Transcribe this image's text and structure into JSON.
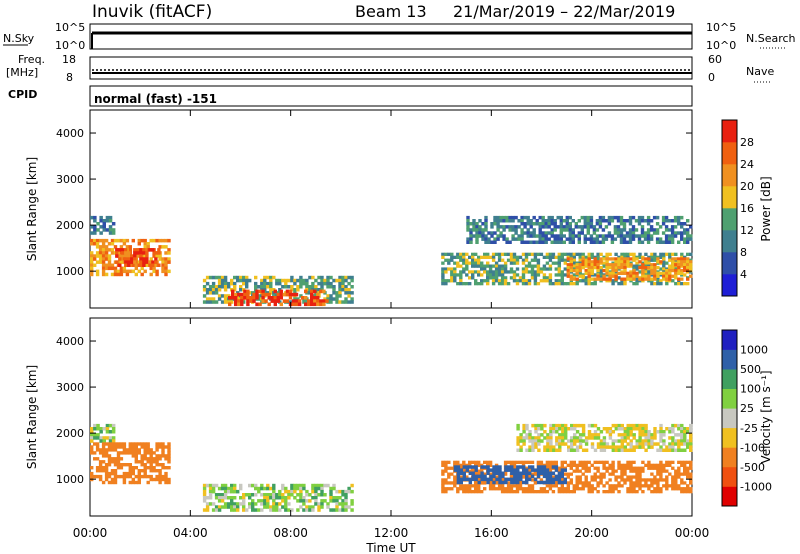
{
  "header": {
    "station": "Inuvik (fitACF)",
    "beam": "Beam 13",
    "date_range": "21/Mar/2019 – 22/Mar/2019"
  },
  "nsky_panel": {
    "left_label": "N.Sky",
    "left_top_tick": "10^5",
    "left_bottom_tick": "10^0",
    "right_top_tick": "10^5",
    "right_bottom_tick": "10^0",
    "right_label": "N.Search"
  },
  "freq_panel": {
    "left_label_1": "Freq.",
    "left_label_2": "[MHz]",
    "left_top_tick": "18",
    "left_bottom_tick": "8",
    "right_top_tick": "60",
    "right_bottom_tick": "0",
    "right_label": "Nave"
  },
  "cpid": {
    "label": "CPID",
    "value": "normal (fast) -151"
  },
  "power_panel": {
    "ylabel": "Slant Range [km]",
    "colorbar_title": "Power [dB]",
    "colorbar_ticks": [
      "28",
      "24",
      "20",
      "16",
      "12",
      "8",
      "4"
    ]
  },
  "velocity_panel": {
    "ylabel": "Slant Range [km]",
    "colorbar_title": "Velocity [m s⁻¹]",
    "colorbar_ticks": [
      "1000",
      "500",
      "100",
      "25",
      "-25",
      "-100",
      "-500",
      "-1000"
    ]
  },
  "xaxis": {
    "label": "Time UT",
    "ticks": [
      "00:00",
      "04:00",
      "08:00",
      "12:00",
      "16:00",
      "20:00",
      "00:00"
    ]
  },
  "yaxis_ticks": [
    "1000",
    "2000",
    "3000",
    "4000"
  ],
  "colors": {
    "power_scale": [
      "#1f1fd6",
      "#2f4fa8",
      "#3f7f8f",
      "#4fa070",
      "#f0c020",
      "#f09020",
      "#f06010",
      "#e82010"
    ],
    "velocity_scale": [
      "#e00000",
      "#f05010",
      "#f08020",
      "#f0c020",
      "#c8c8c0",
      "#80d040",
      "#40a060",
      "#2f60a8",
      "#2020c0"
    ]
  },
  "chart_data": [
    {
      "type": "heatmap",
      "title": "Power [dB]",
      "xlabel": "Time UT",
      "ylabel": "Slant Range [km]",
      "xlim": [
        0,
        24
      ],
      "ylim": [
        200,
        4500
      ],
      "colorbar": {
        "label": "Power [dB]",
        "range": [
          0,
          32
        ],
        "ticks": [
          4,
          8,
          12,
          16,
          20,
          24,
          28
        ]
      },
      "regions": [
        {
          "t_start": 0.0,
          "t_end": 1.0,
          "range_min": 1800,
          "range_max": 2200,
          "power": 10
        },
        {
          "t_start": 0.0,
          "t_end": 3.2,
          "range_min": 900,
          "range_max": 1700,
          "power": 22
        },
        {
          "t_start": 1.0,
          "t_end": 2.8,
          "range_min": 1100,
          "range_max": 1500,
          "power": 28
        },
        {
          "t_start": 4.5,
          "t_end": 10.5,
          "range_min": 300,
          "range_max": 900,
          "power": 14
        },
        {
          "t_start": 5.5,
          "t_end": 9.5,
          "range_min": 250,
          "range_max": 600,
          "power": 28
        },
        {
          "t_start": 14.0,
          "t_end": 24.0,
          "range_min": 700,
          "range_max": 1400,
          "power": 14
        },
        {
          "t_start": 19.0,
          "t_end": 24.0,
          "range_min": 800,
          "range_max": 1300,
          "power": 22
        },
        {
          "t_start": 15.0,
          "t_end": 24.0,
          "range_min": 1600,
          "range_max": 2200,
          "power": 10
        }
      ]
    },
    {
      "type": "heatmap",
      "title": "Velocity [m s-1]",
      "xlabel": "Time UT",
      "ylabel": "Slant Range [km]",
      "xlim": [
        0,
        24
      ],
      "ylim": [
        200,
        4500
      ],
      "colorbar": {
        "label": "Velocity [m s-1]",
        "ticks": [
          1000,
          500,
          100,
          25,
          -25,
          -100,
          -500,
          -1000
        ]
      },
      "regions": [
        {
          "t_start": 0.0,
          "t_end": 1.0,
          "range_min": 1800,
          "range_max": 2200,
          "velocity": 50
        },
        {
          "t_start": 0.0,
          "t_end": 3.2,
          "range_min": 900,
          "range_max": 1800,
          "velocity": -300
        },
        {
          "t_start": 4.5,
          "t_end": 10.5,
          "range_min": 300,
          "range_max": 900,
          "velocity": 50
        },
        {
          "t_start": 14.0,
          "t_end": 24.0,
          "range_min": 700,
          "range_max": 1400,
          "velocity": -200
        },
        {
          "t_start": 14.5,
          "t_end": 19.0,
          "range_min": 900,
          "range_max": 1300,
          "velocity": 600
        },
        {
          "t_start": 17.0,
          "t_end": 24.0,
          "range_min": 1600,
          "range_max": 2200,
          "velocity": 0
        }
      ]
    }
  ]
}
